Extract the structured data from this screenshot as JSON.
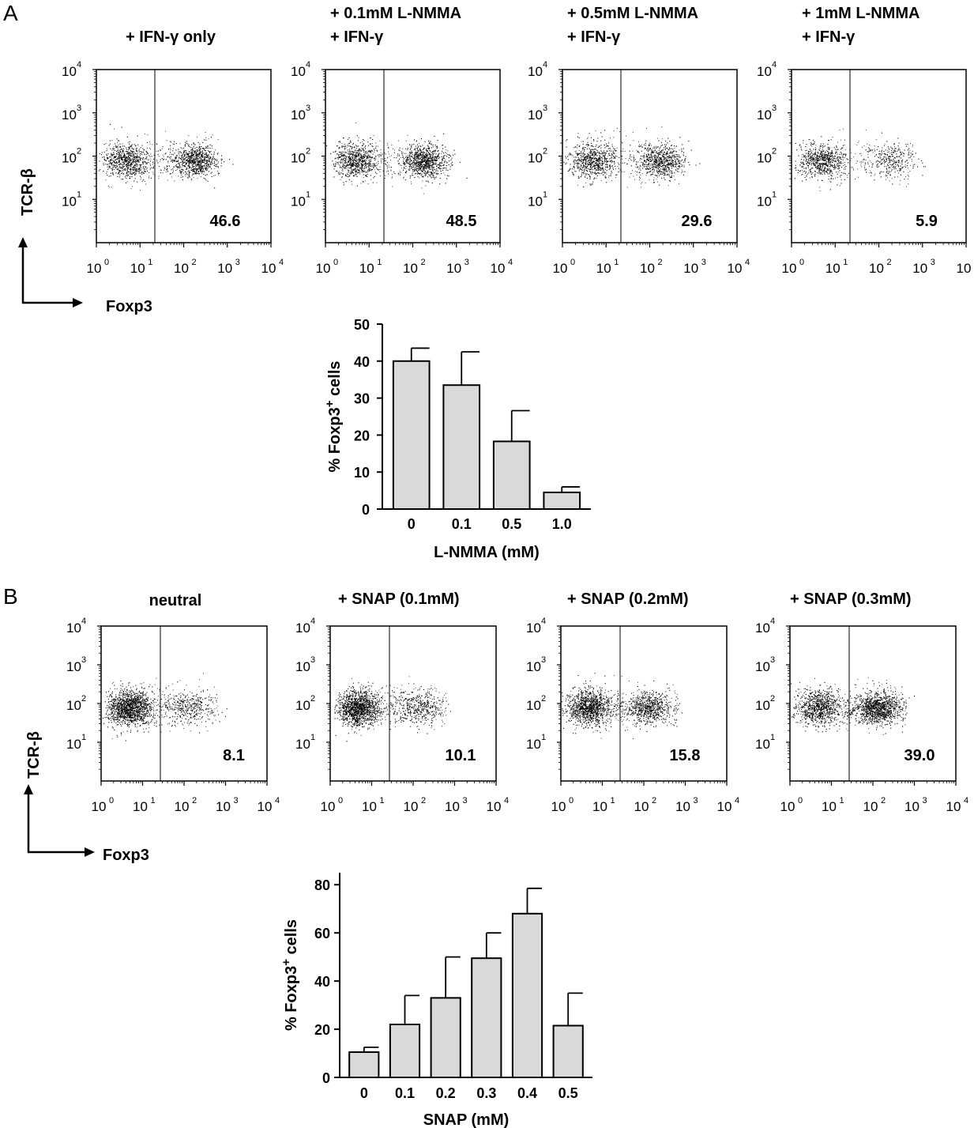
{
  "panels": [
    {
      "letter": "A",
      "y_axis_label": "TCR-β",
      "x_axis_label": "Foxp3",
      "log_ticks": [
        {
          "base": "10",
          "exp": "0"
        },
        {
          "base": "10",
          "exp": "1"
        },
        {
          "base": "10",
          "exp": "2"
        },
        {
          "base": "10",
          "exp": "3"
        },
        {
          "base": "10",
          "exp": "4"
        }
      ],
      "plots": [
        {
          "title_lines": [
            "+ IFN-γ only"
          ],
          "percent": "46.6"
        },
        {
          "title_lines": [
            "+ 0.1mM L-NMMA",
            "+ IFN-γ"
          ],
          "percent": "48.5"
        },
        {
          "title_lines": [
            "+ 0.5mM L-NMMA",
            "+ IFN-γ"
          ],
          "percent": "29.6"
        },
        {
          "title_lines": [
            "+ 1mM L-NMMA",
            "+ IFN-γ"
          ],
          "percent": "5.9"
        }
      ]
    },
    {
      "letter": "B",
      "y_axis_label": "TCR-β",
      "x_axis_label": "Foxp3",
      "log_ticks": [
        {
          "base": "10",
          "exp": "0"
        },
        {
          "base": "10",
          "exp": "1"
        },
        {
          "base": "10",
          "exp": "2"
        },
        {
          "base": "10",
          "exp": "3"
        },
        {
          "base": "10",
          "exp": "4"
        }
      ],
      "plots": [
        {
          "title_lines": [
            "neutral"
          ],
          "percent": "8.1"
        },
        {
          "title_lines": [
            "+ SNAP (0.1mM)"
          ],
          "percent": "10.1"
        },
        {
          "title_lines": [
            "+ SNAP (0.2mM)"
          ],
          "percent": "15.8"
        },
        {
          "title_lines": [
            "+ SNAP (0.3mM)"
          ],
          "percent": "39.0"
        }
      ]
    }
  ],
  "chart_data": [
    {
      "type": "bar",
      "categories": [
        "0",
        "0.1",
        "0.5",
        "1.0"
      ],
      "values": [
        40,
        33.5,
        18.3,
        4.5
      ],
      "errors": [
        3.5,
        9,
        8.3,
        1.5
      ],
      "ylabel": "% Foxp3",
      "ylabel_sup": "+",
      "ylabel_tail": " cells",
      "xlabel": "L-NMMA (mM)",
      "ylim": [
        0,
        50
      ],
      "yticks": [
        "0",
        "10",
        "20",
        "30",
        "40",
        "50"
      ],
      "bar_color": "#d9d9d9"
    },
    {
      "type": "bar",
      "categories": [
        "0",
        "0.1",
        "0.2",
        "0.3",
        "0.4",
        "0.5"
      ],
      "values": [
        10.5,
        22,
        33,
        49.5,
        68,
        21.5
      ],
      "errors": [
        2,
        12,
        17,
        10.5,
        10.5,
        13.5
      ],
      "ylabel": "% Foxp3",
      "ylabel_sup": "+",
      "ylabel_tail": " cells",
      "xlabel": "SNAP (mM)",
      "ylim": [
        0,
        85
      ],
      "yticks": [
        "0",
        "20",
        "40",
        "60",
        "80"
      ],
      "bar_color": "#d9d9d9"
    }
  ]
}
